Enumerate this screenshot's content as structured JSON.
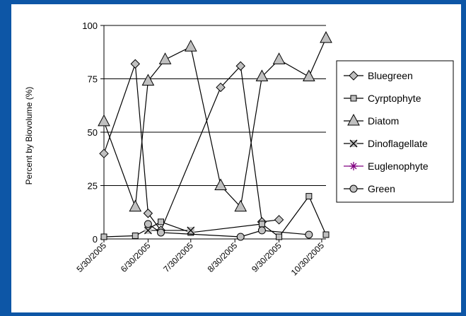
{
  "chart_data": {
    "type": "line",
    "ylabel": "Percent by Biovolume (%)",
    "xlabel": "",
    "title": "",
    "ylim": [
      0,
      100
    ],
    "yticks": [
      0,
      25,
      50,
      75,
      100
    ],
    "xticks": [
      "5/30/2005",
      "6/30/2005",
      "7/30/2005",
      "8/30/2005",
      "9/30/2005",
      "10/30/2005"
    ],
    "xlim": [
      "5/30/2005",
      "11/2/2005"
    ],
    "grid": "horizontal",
    "legend": "right",
    "series": [
      {
        "name": "Bluegreen",
        "marker": "diamond",
        "color": "#000000",
        "points": [
          {
            "date": "5/30/2005",
            "value": 40
          },
          {
            "date": "6/21/2005",
            "value": 82
          },
          {
            "date": "6/30/2005",
            "value": 12
          },
          {
            "date": "7/9/2005",
            "value": 4
          },
          {
            "date": "8/20/2005",
            "value": 71
          },
          {
            "date": "9/3/2005",
            "value": 81
          },
          {
            "date": "9/18/2005",
            "value": 8
          },
          {
            "date": "9/30/2005",
            "value": 9
          }
        ]
      },
      {
        "name": "Cyrptophyte",
        "marker": "square",
        "color": "#000000",
        "points": [
          {
            "date": "5/30/2005",
            "value": 1
          },
          {
            "date": "6/21/2005",
            "value": 1.5
          },
          {
            "date": "7/9/2005",
            "value": 8
          },
          {
            "date": "7/30/2005",
            "value": 3
          },
          {
            "date": "9/18/2005",
            "value": 7
          },
          {
            "date": "9/30/2005",
            "value": 1
          },
          {
            "date": "10/21/2005",
            "value": 20
          },
          {
            "date": "11/2/2005",
            "value": 2
          }
        ]
      },
      {
        "name": "Diatom",
        "marker": "triangle",
        "color": "#000000",
        "points": [
          {
            "date": "5/30/2005",
            "value": 55
          },
          {
            "date": "6/21/2005",
            "value": 15
          },
          {
            "date": "6/30/2005",
            "value": 74
          },
          {
            "date": "7/12/2005",
            "value": 84
          },
          {
            "date": "7/30/2005",
            "value": 90
          },
          {
            "date": "8/20/2005",
            "value": 25
          },
          {
            "date": "9/3/2005",
            "value": 15
          },
          {
            "date": "9/18/2005",
            "value": 76
          },
          {
            "date": "9/30/2005",
            "value": 84
          },
          {
            "date": "10/21/2005",
            "value": 76
          },
          {
            "date": "11/2/2005",
            "value": 94
          }
        ]
      },
      {
        "name": "Dinoflagellate",
        "marker": "x",
        "color": "#000000",
        "points": [
          {
            "date": "6/30/2005",
            "value": 4
          },
          {
            "date": "7/30/2005",
            "value": 4
          }
        ]
      },
      {
        "name": "Euglenophyte",
        "marker": "star",
        "color": "#800080",
        "points": []
      },
      {
        "name": "Green",
        "marker": "circle",
        "color": "#000000",
        "points": [
          {
            "date": "6/30/2005",
            "value": 7
          },
          {
            "date": "7/9/2005",
            "value": 3
          },
          {
            "date": "9/3/2005",
            "value": 1
          },
          {
            "date": "9/18/2005",
            "value": 4
          },
          {
            "date": "10/21/2005",
            "value": 2
          }
        ]
      }
    ]
  }
}
